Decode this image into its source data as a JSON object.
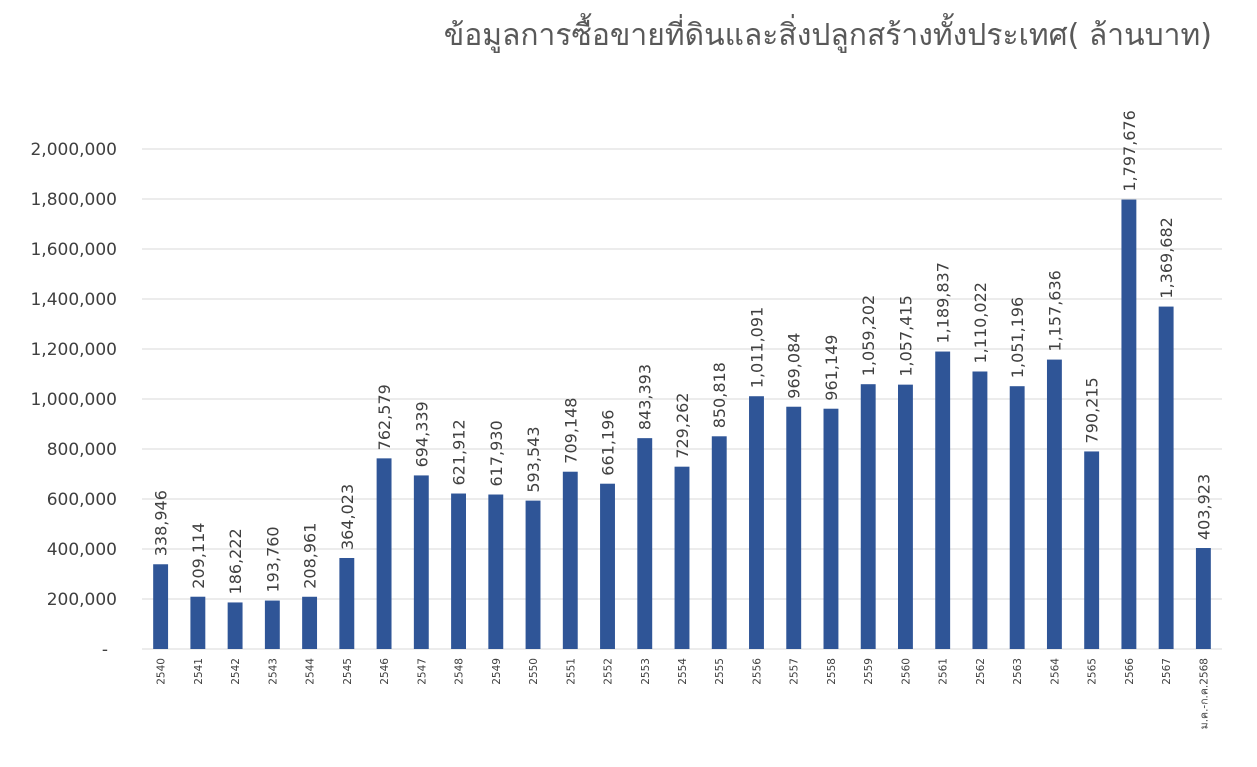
{
  "chart_data": {
    "type": "bar",
    "title": "ข้อมูลการซื้อขายที่ดินและสิ่งปลูกสร้างทั้งประเทศ( ล้านบาท)",
    "categories": [
      "2540",
      "2541",
      "2542",
      "2543",
      "2544",
      "2545",
      "2546",
      "2547",
      "2548",
      "2549",
      "2550",
      "2551",
      "2552",
      "2553",
      "2554",
      "2555",
      "2556",
      "2557",
      "2558",
      "2559",
      "2560",
      "2561",
      "2562",
      "2563",
      "2564",
      "2565",
      "2566",
      "2567",
      "ม.ค.-ก.ค.2568"
    ],
    "values": [
      338946,
      209114,
      186222,
      193760,
      208961,
      364023,
      762579,
      694339,
      621912,
      617930,
      593543,
      709148,
      661196,
      843393,
      729262,
      850818,
      1011091,
      969084,
      961149,
      1059202,
      1057415,
      1189837,
      1110022,
      1051196,
      1157636,
      790215,
      1797676,
      1369682,
      403923
    ],
    "data_labels": [
      "338,946",
      "209,114",
      "186,222",
      "193,760",
      "208,961",
      "364,023",
      "762,579",
      "694,339",
      "621,912",
      "617,930",
      "593,543",
      "709,148",
      "661,196",
      "843,393",
      "729,262",
      "850,818",
      "1,011,091",
      "969,084",
      "961,149",
      "1,059,202",
      "1,057,415",
      "1,189,837",
      "1,110,022",
      "1,051,196",
      "1,157,636",
      "790,215",
      "1,797,676",
      "1,369,682",
      "403,923"
    ],
    "y_ticks": [
      {
        "value": 0,
        "label": "-"
      },
      {
        "value": 200000,
        "label": "200,000"
      },
      {
        "value": 400000,
        "label": "400,000"
      },
      {
        "value": 600000,
        "label": "600,000"
      },
      {
        "value": 800000,
        "label": "800,000"
      },
      {
        "value": 1000000,
        "label": "1,000,000"
      },
      {
        "value": 1200000,
        "label": "1,200,000"
      },
      {
        "value": 1400000,
        "label": "1,400,000"
      },
      {
        "value": 1600000,
        "label": "1,600,000"
      },
      {
        "value": 1800000,
        "label": "1,800,000"
      },
      {
        "value": 2000000,
        "label": "2,000,000"
      }
    ],
    "ylim": [
      0,
      2000000
    ],
    "xlabel": "",
    "ylabel": "",
    "grid": true,
    "legend": "none",
    "bar_color": "#2f5597"
  }
}
